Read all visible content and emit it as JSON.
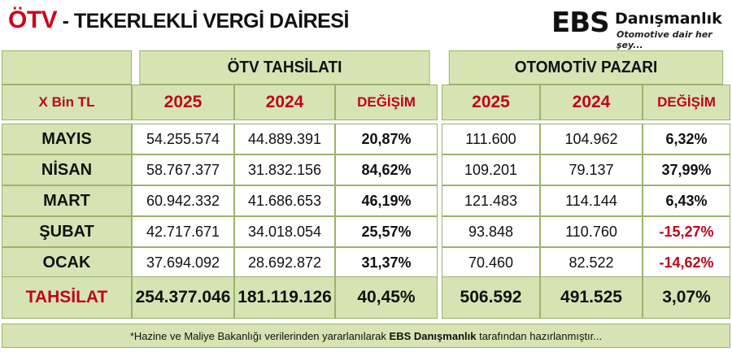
{
  "header": {
    "title_prefix": "ÖTV",
    "title_rest": " - TEKERLEKLİ VERGİ DAİRESİ",
    "logo_mark": "EBS",
    "logo_brand": "Danışmanlık",
    "logo_slogan": "Otomotive dair her şey..."
  },
  "sections": {
    "left_title": "ÖTV TAHSİLATI",
    "right_title": "OTOMOTİV PAZARI"
  },
  "columns": {
    "unit": "X Bin TL",
    "y2025": "2025",
    "y2024": "2024",
    "change": "DEĞİŞİM"
  },
  "rows": [
    {
      "month": "MAYIS",
      "otv_2025": "54.255.574",
      "otv_2024": "44.889.391",
      "otv_change": "20,87%",
      "pazar_2025": "111.600",
      "pazar_2024": "104.962",
      "pazar_change": "6,32%"
    },
    {
      "month": "NİSAN",
      "otv_2025": "58.767.377",
      "otv_2024": "31.832.156",
      "otv_change": "84,62%",
      "pazar_2025": "109.201",
      "pazar_2024": "79.137",
      "pazar_change": "37,99%"
    },
    {
      "month": "MART",
      "otv_2025": "60.942.332",
      "otv_2024": "41.686.653",
      "otv_change": "46,19%",
      "pazar_2025": "121.483",
      "pazar_2024": "114.144",
      "pazar_change": "6,43%"
    },
    {
      "month": "ŞUBAT",
      "otv_2025": "42.717.671",
      "otv_2024": "34.018.054",
      "otv_change": "25,57%",
      "pazar_2025": "93.848",
      "pazar_2024": "110.760",
      "pazar_change": "-15,27%"
    },
    {
      "month": "OCAK",
      "otv_2025": "37.694.092",
      "otv_2024": "28.692.872",
      "otv_change": "31,37%",
      "pazar_2025": "70.460",
      "pazar_2024": "82.522",
      "pazar_change": "-14,62%"
    }
  ],
  "total": {
    "label": "TAHSİLAT",
    "otv_2025": "254.377.046",
    "otv_2024": "181.119.126",
    "otv_change": "40,45%",
    "pazar_2025": "506.592",
    "pazar_2024": "491.525",
    "pazar_change": "3,07%"
  },
  "footer": {
    "before": "*Hazine ve Maliye Bakanlığı verilerinden yararlanılarak ",
    "bold": "EBS Danışmanlık",
    "after": " tarafından hazırlanmıştır..."
  },
  "colors": {
    "accent_red": "#c0041a",
    "header_green": "#d6e4b4",
    "border_green": "#9ab36b"
  }
}
